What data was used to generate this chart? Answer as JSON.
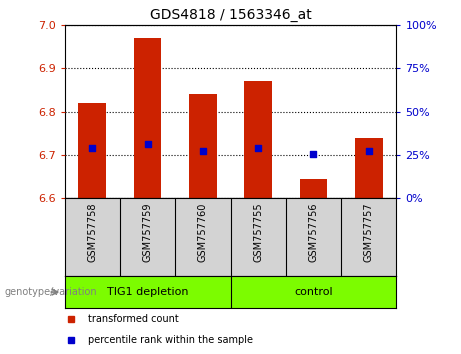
{
  "title": "GDS4818 / 1563346_at",
  "samples": [
    "GSM757758",
    "GSM757759",
    "GSM757760",
    "GSM757755",
    "GSM757756",
    "GSM757757"
  ],
  "bar_bottoms": [
    6.6,
    6.6,
    6.6,
    6.6,
    6.6,
    6.6
  ],
  "bar_tops": [
    6.82,
    6.97,
    6.84,
    6.87,
    6.645,
    6.74
  ],
  "blue_dots": [
    6.715,
    6.725,
    6.71,
    6.715,
    6.703,
    6.71
  ],
  "bar_color": "#cc2200",
  "dot_color": "#0000cc",
  "ylim": [
    6.6,
    7.0
  ],
  "y_ticks_left": [
    6.6,
    6.7,
    6.8,
    6.9,
    7.0
  ],
  "y_ticks_right": [
    0,
    25,
    50,
    75,
    100
  ],
  "group1_label": "TIG1 depletion",
  "group2_label": "control",
  "group1_indices": [
    0,
    1,
    2
  ],
  "group2_indices": [
    3,
    4,
    5
  ],
  "group_color": "#7CFC00",
  "xlabel_left": "genotype/variation",
  "legend_red_label": "transformed count",
  "legend_blue_label": "percentile rank within the sample",
  "label_bg_color": "#d3d3d3",
  "plot_bg": "#ffffff",
  "left_tick_color": "#cc2200",
  "right_tick_color": "#0000cc"
}
